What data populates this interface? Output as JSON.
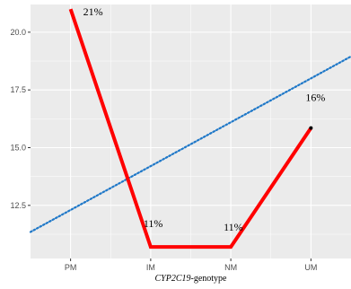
{
  "chart_data": {
    "type": "line",
    "categories": [
      "PM",
      "IM",
      "NM",
      "UM"
    ],
    "series": [
      {
        "values": [
          21.0,
          10.7,
          10.7,
          15.85
        ],
        "color": "#ff0000",
        "labels": [
          "21%",
          "11%",
          "11%",
          "16%"
        ]
      }
    ],
    "trend_line": {
      "style": "dotted",
      "color": "#1f78c8",
      "start": {
        "x": 0.5,
        "y": 11.35
      },
      "end": {
        "x": 4.5,
        "y": 18.95
      }
    },
    "endpoint_marker": {
      "category": "UM",
      "y": 15.85,
      "color": "#000000"
    },
    "xlabel_italic": "CYP2C19",
    "xlabel_rest": "-genotype",
    "ylabel": "",
    "yticks": [
      "12.5",
      "15.0",
      "17.5",
      "20.0"
    ],
    "ylim": [
      10.2,
      21.2
    ],
    "xlim": [
      0.5,
      4.5
    ],
    "grid": true,
    "panel_color": "#ebebeb",
    "gridline_color": "#ffffff"
  }
}
